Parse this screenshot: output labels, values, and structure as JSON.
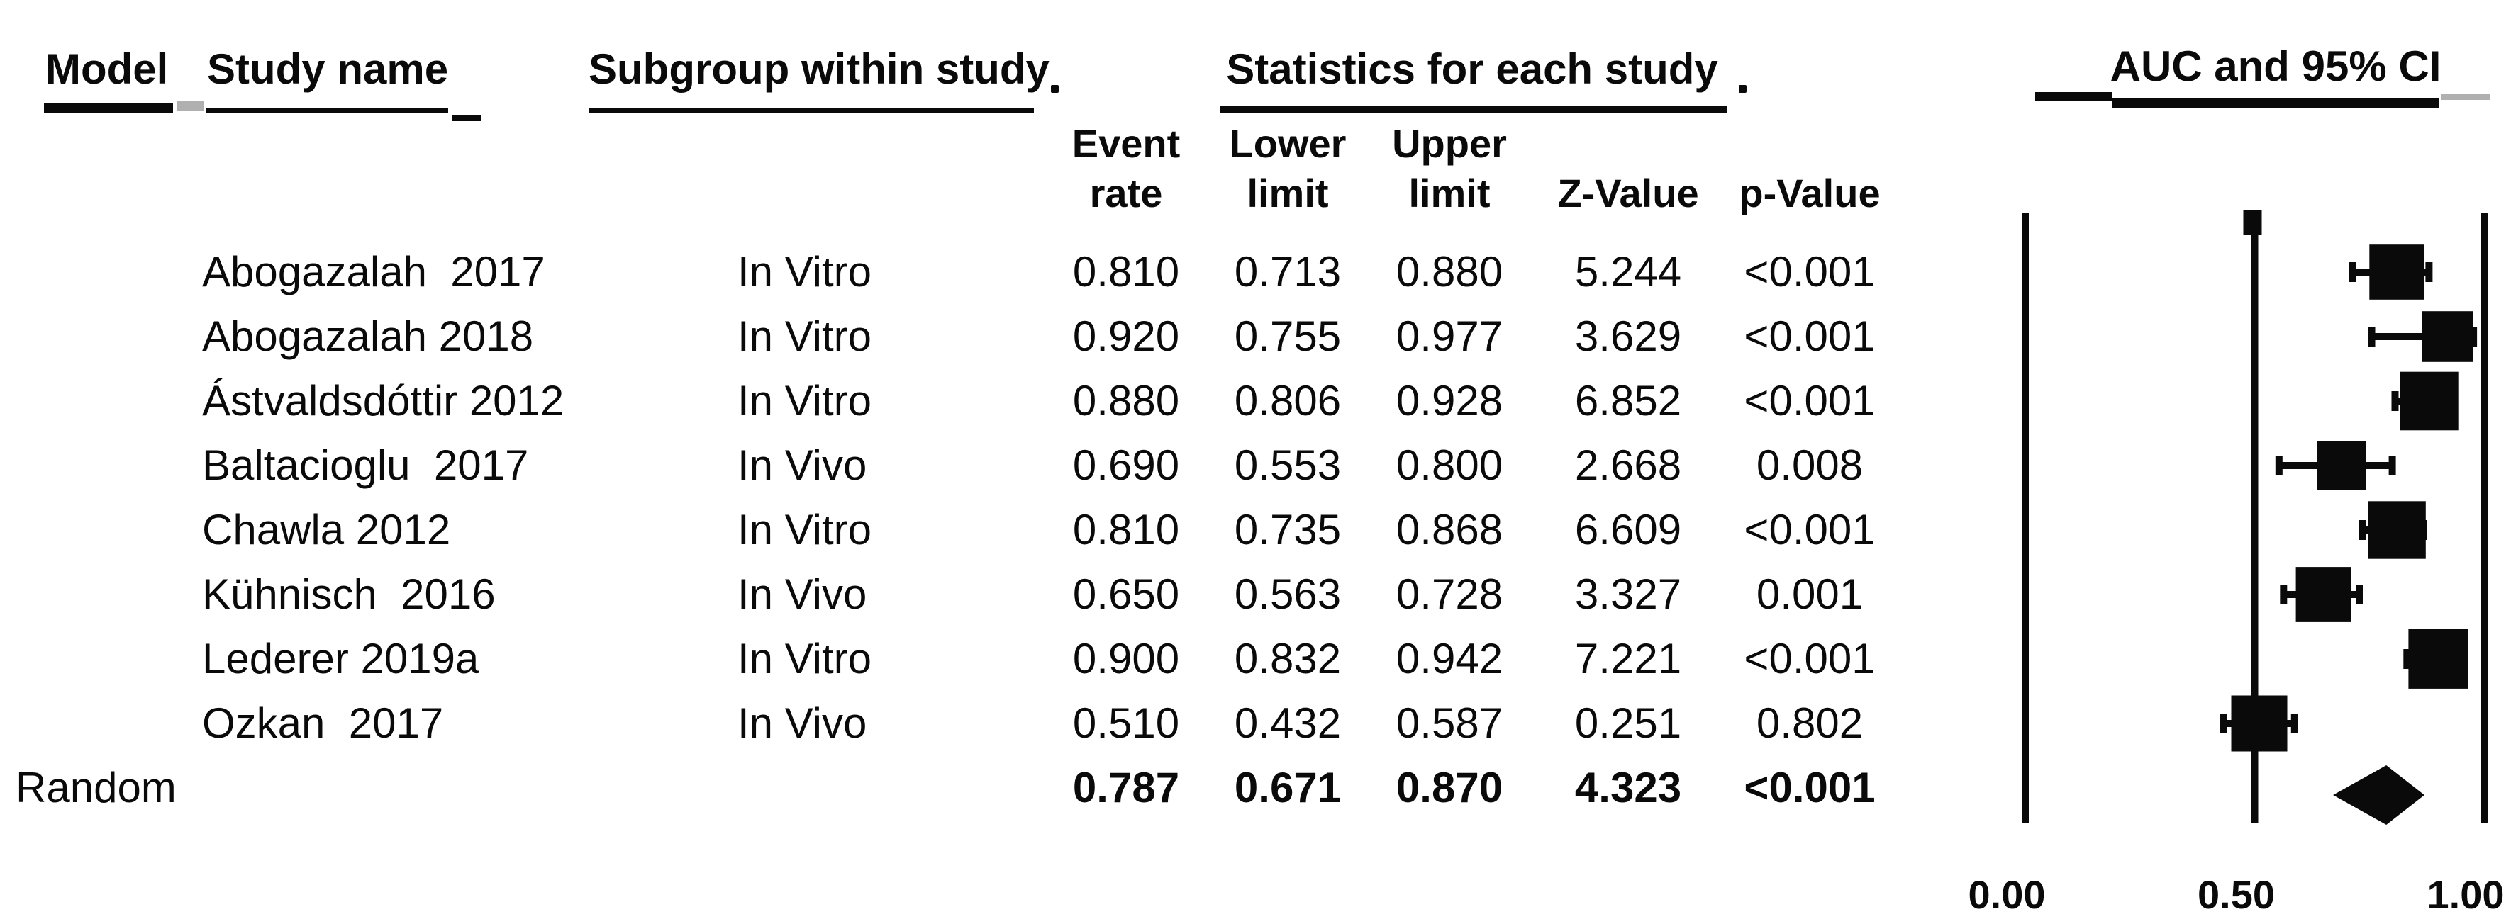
{
  "figure": {
    "headers": {
      "model": "Model",
      "study_name": "Study name",
      "subgroup": "Subgroup within study",
      "statistics": "Statistics for each study",
      "auc": "AUC and 95% CI"
    },
    "stat_columns": [
      {
        "line1": "Event",
        "line2": "rate"
      },
      {
        "line1": "Lower",
        "line2": "limit"
      },
      {
        "line1": "Upper",
        "line2": "limit"
      },
      {
        "line1": "",
        "line2": "Z-Value"
      },
      {
        "line1": "",
        "line2": "p-Value"
      }
    ],
    "summary_label": "Random"
  },
  "chart_data": {
    "type": "forest",
    "title": "AUC and 95% CI",
    "effect_measure": "Event rate (AUC)",
    "model": "Random",
    "x_axis": {
      "range": [
        0,
        1
      ],
      "ticks": [
        0,
        0.5,
        1
      ],
      "tick_labels": [
        "0.00",
        "0.50",
        "1.00"
      ]
    },
    "columns": [
      "Event rate",
      "Lower limit",
      "Upper limit",
      "Z-Value",
      "p-Value"
    ],
    "studies": [
      {
        "study": "Abogazalah  2017",
        "subgroup": "In Vitro",
        "event_rate": 0.81,
        "lower": 0.713,
        "upper": 0.88,
        "z": 5.244,
        "p": "<0.001"
      },
      {
        "study": "Abogazalah 2018",
        "subgroup": "In Vitro",
        "event_rate": 0.92,
        "lower": 0.755,
        "upper": 0.977,
        "z": 3.629,
        "p": "<0.001"
      },
      {
        "study": "Ástvaldsdóttir 2012",
        "subgroup": "In Vitro",
        "event_rate": 0.88,
        "lower": 0.806,
        "upper": 0.928,
        "z": 6.852,
        "p": "<0.001"
      },
      {
        "study": "Baltacioglu  2017",
        "subgroup": "In Vivo",
        "event_rate": 0.69,
        "lower": 0.553,
        "upper": 0.8,
        "z": 2.668,
        "p": "0.008"
      },
      {
        "study": "Chawla 2012",
        "subgroup": "In Vitro",
        "event_rate": 0.81,
        "lower": 0.735,
        "upper": 0.868,
        "z": 6.609,
        "p": "<0.001"
      },
      {
        "study": "Kühnisch  2016",
        "subgroup": "In Vivo",
        "event_rate": 0.65,
        "lower": 0.563,
        "upper": 0.728,
        "z": 3.327,
        "p": "0.001"
      },
      {
        "study": "Lederer 2019a",
        "subgroup": "In Vitro",
        "event_rate": 0.9,
        "lower": 0.832,
        "upper": 0.942,
        "z": 7.221,
        "p": "<0.001"
      },
      {
        "study": "Ozkan  2017",
        "subgroup": "In Vivo",
        "event_rate": 0.51,
        "lower": 0.432,
        "upper": 0.587,
        "z": 0.251,
        "p": "0.802"
      }
    ],
    "summary": {
      "model": "Random",
      "event_rate": 0.787,
      "lower": 0.671,
      "upper": 0.87,
      "z": 4.323,
      "p": "<0.001"
    },
    "colors": {
      "ink": "#0a0a0a",
      "scan_gray": "#b0b0b0",
      "background": "#ffffff"
    }
  }
}
